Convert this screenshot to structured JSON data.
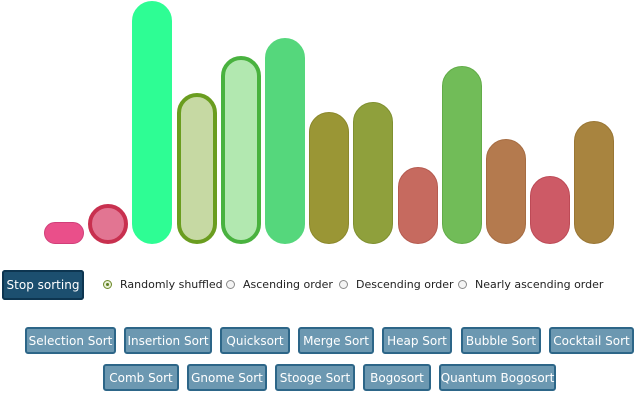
{
  "bars": [
    {
      "value": 1.0,
      "color": "#ea4f8a",
      "border": "#d03f79",
      "highlighted": false
    },
    {
      "value": 2.0,
      "color": "#e27592",
      "border": "#c8304f",
      "highlighted": true
    },
    {
      "value": 13.0,
      "color": "#2efd94",
      "border": "#2efd94",
      "highlighted": false
    },
    {
      "value": 8.0,
      "color": "#c6d9a3",
      "border": "#6a9d1f",
      "highlighted": true
    },
    {
      "value": 10.0,
      "color": "#b2e8b0",
      "border": "#49b23f",
      "highlighted": true
    },
    {
      "value": 11.0,
      "color": "#55d77c",
      "border": "#55d77c",
      "highlighted": false
    },
    {
      "value": 7.0,
      "color": "#9a9635",
      "border": "#8b882b",
      "highlighted": false
    },
    {
      "value": 7.5,
      "color": "#8fa03c",
      "border": "#7f9030",
      "highlighted": false
    },
    {
      "value": 4.0,
      "color": "#c66a5f",
      "border": "#b55b50",
      "highlighted": false
    },
    {
      "value": 9.5,
      "color": "#71bc58",
      "border": "#62ac48",
      "highlighted": false
    },
    {
      "value": 5.5,
      "color": "#b47a4e",
      "border": "#a66c42",
      "highlighted": false
    },
    {
      "value": 3.5,
      "color": "#cd5a66",
      "border": "#bd4a56",
      "highlighted": false
    },
    {
      "value": 6.5,
      "color": "#a8843f",
      "border": "#997634",
      "highlighted": false
    }
  ],
  "stop_label": "Stop sorting",
  "order_options": [
    {
      "label": "Randomly shuffled",
      "checked": true
    },
    {
      "label": "Ascending order",
      "checked": false
    },
    {
      "label": "Descending order",
      "checked": false
    },
    {
      "label": "Nearly ascending order",
      "checked": false
    }
  ],
  "algorithms_row1": [
    "Selection Sort",
    "Insertion Sort",
    "Quicksort",
    "Merge Sort",
    "Heap Sort",
    "Bubble Sort",
    "Cocktail Sort"
  ],
  "algorithms_row2": [
    "Comb Sort",
    "Gnome Sort",
    "Stooge Sort",
    "Bogosort",
    "Quantum Bogosort"
  ]
}
